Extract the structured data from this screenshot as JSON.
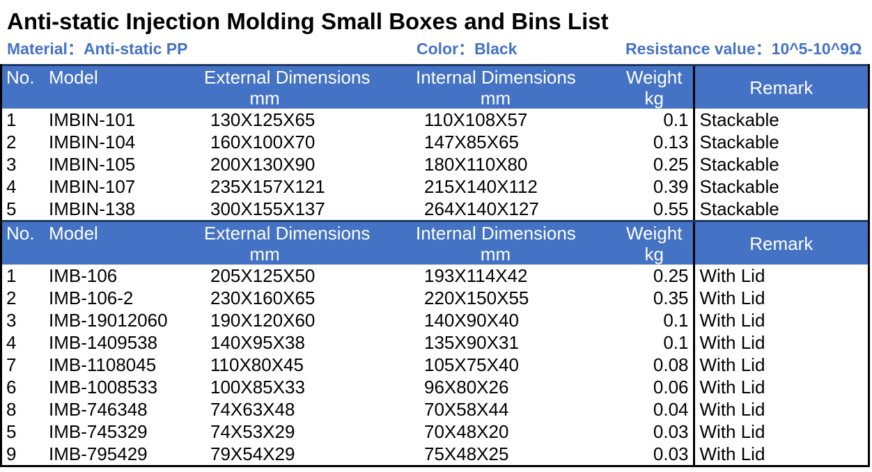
{
  "page": {
    "title": "Anti-static Injection Molding Small Boxes and Bins List"
  },
  "meta": {
    "material": {
      "label": "Material：",
      "value": "Anti-static PP"
    },
    "color": {
      "label": "Color：",
      "value": "Black"
    },
    "resistance": {
      "label": "Resistance value：",
      "value": "10^5-10^9Ω"
    }
  },
  "columns": {
    "no": "No.",
    "model": "Model",
    "external_line1": "External Dimensions",
    "external_line2": "mm",
    "internal_line1": "Internal Dimensions",
    "internal_line2": "mm",
    "weight_line1": "Weight",
    "weight_line2": "kg",
    "remark": "Remark"
  },
  "colors": {
    "header_background": "#4472C4",
    "header_text": "#FFFFFF",
    "meta_text": "#4472C4",
    "section_divider": "#1F3864",
    "table_border": "#000000",
    "body_text": "#000000"
  },
  "tables": [
    {
      "name": "stackable-bins",
      "rows": [
        {
          "no": "1",
          "model": "IMBIN-101",
          "external": "130X125X65",
          "internal": "110X108X57",
          "weight": "0.1",
          "remark": "Stackable"
        },
        {
          "no": "2",
          "model": "IMBIN-104",
          "external": "160X100X70",
          "internal": "147X85X65",
          "weight": "0.13",
          "remark": "Stackable"
        },
        {
          "no": "3",
          "model": "IMBIN-105",
          "external": "200X130X90",
          "internal": "180X110X80",
          "weight": "0.25",
          "remark": "Stackable"
        },
        {
          "no": "4",
          "model": "IMBIN-107",
          "external": "235X157X121",
          "internal": "215X140X112",
          "weight": "0.39",
          "remark": "Stackable"
        },
        {
          "no": "5",
          "model": "IMBIN-138",
          "external": "300X155X137",
          "internal": "264X140X127",
          "weight": "0.55",
          "remark": "Stackable"
        }
      ]
    },
    {
      "name": "lidded-boxes",
      "rows": [
        {
          "no": "1",
          "model": "IMB-106",
          "external": "205X125X50",
          "internal": "193X114X42",
          "weight": "0.25",
          "remark": "With Lid"
        },
        {
          "no": "2",
          "model": "IMB-106-2",
          "external": "230X160X65",
          "internal": "220X150X55",
          "weight": "0.35",
          "remark": "With Lid"
        },
        {
          "no": "3",
          "model": "IMB-19012060",
          "external": "190X120X60",
          "internal": "140X90X40",
          "weight": "0.1",
          "remark": "With Lid"
        },
        {
          "no": "4",
          "model": "IMB-1409538",
          "external": "140X95X38",
          "internal": "135X90X31",
          "weight": "0.1",
          "remark": "With Lid"
        },
        {
          "no": "7",
          "model": "IMB-1108045",
          "external": "110X80X45",
          "internal": "105X75X40",
          "weight": "0.08",
          "remark": "With Lid"
        },
        {
          "no": "6",
          "model": "IMB-1008533",
          "external": "100X85X33",
          "internal": "96X80X26",
          "weight": "0.06",
          "remark": "With Lid"
        },
        {
          "no": "8",
          "model": "IMB-746348",
          "external": "74X63X48",
          "internal": "70X58X44",
          "weight": "0.04",
          "remark": "With Lid"
        },
        {
          "no": "5",
          "model": "IMB-745329",
          "external": "74X53X29",
          "internal": "70X48X20",
          "weight": "0.03",
          "remark": "With Lid"
        },
        {
          "no": "9",
          "model": "IMB-795429",
          "external": "79X54X29",
          "internal": "75X48X25",
          "weight": "0.03",
          "remark": "With Lid"
        }
      ]
    }
  ]
}
